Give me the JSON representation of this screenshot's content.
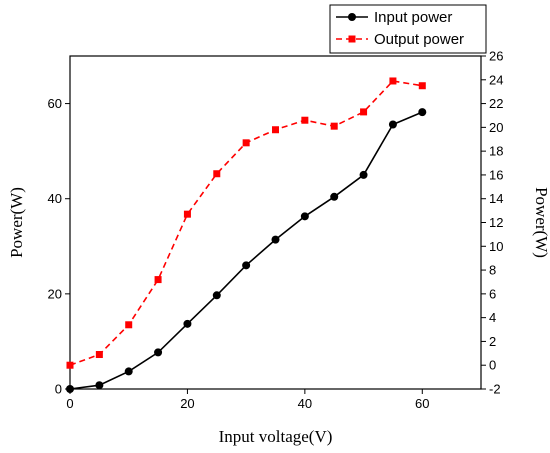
{
  "chart_data": {
    "type": "line",
    "xlabel": "Input voltage(V)",
    "ylabel": "Power(W)",
    "y2label": "Power(W)",
    "xlim": [
      0,
      70
    ],
    "ylim": [
      0,
      70
    ],
    "y2lim": [
      -2,
      26
    ],
    "x_ticks": [
      0,
      20,
      40,
      60
    ],
    "y_ticks": [
      0,
      20,
      40,
      60
    ],
    "y2_ticks": [
      -2,
      0,
      2,
      4,
      6,
      8,
      10,
      12,
      14,
      16,
      18,
      20,
      22,
      24,
      26
    ],
    "grid": false,
    "legend_position": "top-right",
    "series": [
      {
        "name": "Input power",
        "axis": "left",
        "style": "solid",
        "marker": "circle",
        "color": "#000000",
        "x": [
          0,
          5,
          10,
          15,
          20,
          25,
          30,
          35,
          40,
          45,
          50,
          55,
          60
        ],
        "y": [
          0,
          0.8,
          3.7,
          7.7,
          13.7,
          19.7,
          26.0,
          31.4,
          36.3,
          40.4,
          45.0,
          55.6,
          58.2
        ]
      },
      {
        "name": "Output power",
        "axis": "right",
        "style": "dashed",
        "marker": "square",
        "color": "#ff0000",
        "x": [
          0,
          5,
          10,
          15,
          20,
          25,
          30,
          35,
          40,
          45,
          50,
          55,
          60
        ],
        "y": [
          0.0,
          0.9,
          3.4,
          7.2,
          12.7,
          16.1,
          18.7,
          19.8,
          20.6,
          20.1,
          21.3,
          23.9,
          23.5
        ]
      }
    ]
  }
}
